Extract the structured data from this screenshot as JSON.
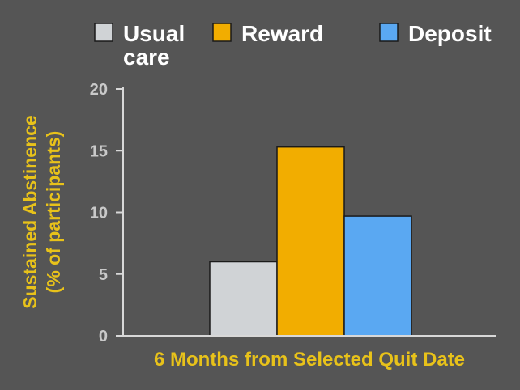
{
  "colors": {
    "background": "#555555",
    "axis": "#d8d8d8",
    "tick_label": "#c9c9c9",
    "title": "#e8c21a",
    "legend_text": "#ffffff",
    "bar_outline": "#1a1a1a"
  },
  "chart_data": {
    "type": "bar",
    "xlabel": "6 Months from Selected Quit Date",
    "ylabel_lines": [
      "Sustained Abstinence",
      "(% of participants)"
    ],
    "ylim": [
      0,
      20
    ],
    "yticks": [
      "0",
      "5",
      "10",
      "15",
      "20"
    ],
    "grid": false,
    "legend_position": "top",
    "series": [
      {
        "name_lines": [
          "Usual",
          "care"
        ],
        "value": 6.0,
        "color": "#d0d3d6"
      },
      {
        "name_lines": [
          "Reward"
        ],
        "value": 15.3,
        "color": "#f2ad00"
      },
      {
        "name_lines": [
          "Deposit"
        ],
        "value": 9.7,
        "color": "#5aa8f2"
      }
    ]
  }
}
